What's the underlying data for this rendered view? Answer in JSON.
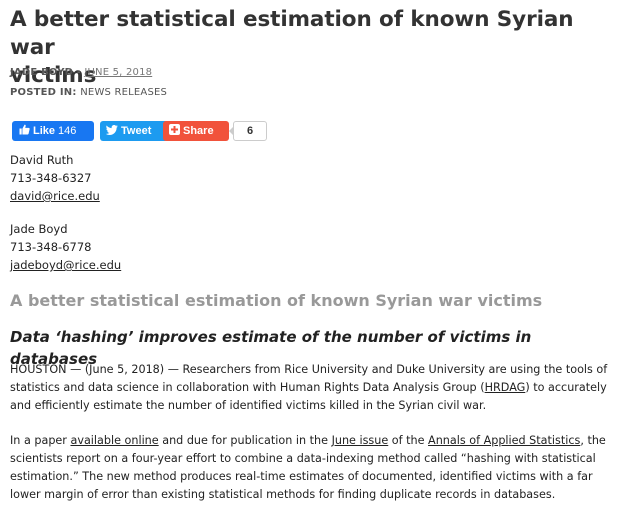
{
  "article": {
    "title_line1": "A better statistical estimation of known Syrian war",
    "title_line2": "victims",
    "author": "JADE BOYD",
    "separator": "-",
    "date": "JUNE 5, 2018",
    "posted_in_label": "POSTED IN:",
    "category": "NEWS RELEASES"
  },
  "share": {
    "like_label": "Like",
    "like_count": "146",
    "tweet_label": "Tweet",
    "share_label": "Share",
    "share_count": "6",
    "icons": [
      "thumbs-up-icon",
      "twitter-bird-icon",
      "plus-icon"
    ],
    "colors": {
      "like": "#1877f2",
      "tweet": "#1d9bf0",
      "share": "#f1523b"
    }
  },
  "contacts": [
    {
      "name": "David Ruth",
      "phone": "713-348-6327",
      "email": "david@rice.edu"
    },
    {
      "name": "Jade Boyd",
      "phone": "713-348-6778",
      "email": "jadeboyd@rice.edu"
    }
  ],
  "story": {
    "heading": "A better statistical estimation of known Syrian war victims",
    "subheading": "Data ‘hashing’ improves estimate of the number of victims in databases",
    "p1_a": "HOUSTON — (June 5, 2018) — Researchers from Rice University and Duke University are using the tools of statistics and data science in collaboration with Human Rights Data Analysis Group (",
    "p1_link": "HRDAG",
    "p1_b": ") to accurately and efficiently estimate the number of identified victims killed in the Syrian civil war.",
    "p2_a": "In a paper ",
    "p2_link1": "available online",
    "p2_b": " and due for publication in the ",
    "p2_link2": "June issue",
    "p2_c": " of the ",
    "p2_link3": "Annals of Applied Statistics",
    "p2_d": ", the scientists report on a four-year effort to combine a data-indexing method called “hashing with statistical estimation.” The new method produces real-time estimates of documented, identified victims with a far lower margin of error than existing statistical methods for finding duplicate records in databases."
  }
}
